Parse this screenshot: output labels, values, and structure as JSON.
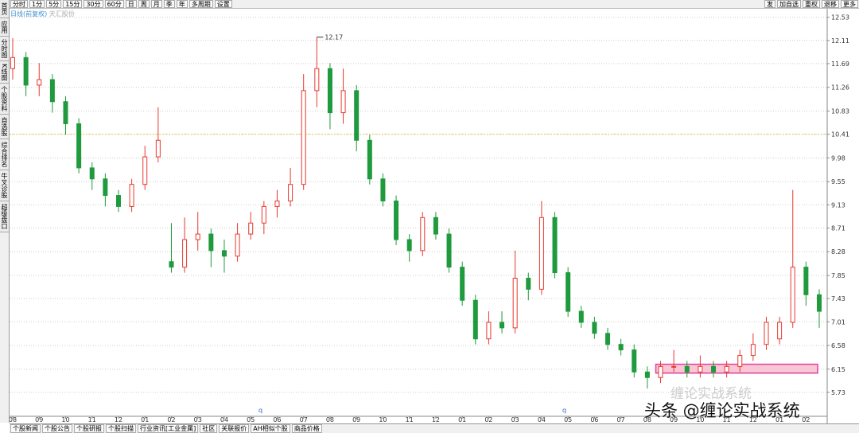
{
  "toolbar": {
    "left": [
      "分时",
      "1分",
      "5分",
      "15分",
      "30分",
      "60分",
      "日",
      "周",
      "月",
      "季",
      "年",
      "多周期",
      "设置"
    ],
    "right": [
      "发",
      "加自选",
      "重权",
      "退移",
      "更多"
    ]
  },
  "side_tabs": [
    "首页",
    "应用",
    "分时图",
    "K线图",
    "个股资料",
    "自选股",
    "综合排名",
    "牛叉诊股",
    "超级盘口"
  ],
  "legend": {
    "period": "日线(前复权)",
    "name": "天汇股份"
  },
  "bottom_tabs": [
    "个股新闻",
    "个股公告",
    "个股研报",
    "个股扫描",
    "行业资讯[工业金属]",
    "社区",
    "关联报价",
    "AH相似个股",
    "商品价格"
  ],
  "bottom_markers": [
    "q",
    "q"
  ],
  "watermark": {
    "main": "头条 @缠论实战系统",
    "faint": "缠论实战系统"
  },
  "chart_data": {
    "type": "candlestick",
    "high_label": "12.17",
    "up_color": "#e8382f",
    "down_color": "#1f9a3c",
    "ylim": [
      5.34,
      12.67
    ],
    "yticks": [
      12.53,
      12.11,
      11.69,
      11.26,
      10.83,
      10.41,
      9.98,
      9.55,
      9.13,
      8.71,
      8.28,
      7.85,
      7.43,
      7.01,
      6.58,
      6.15,
      5.73
    ],
    "reference_line": 10.41,
    "zone": [
      6.08,
      6.24
    ],
    "categories": [
      "08",
      null,
      "09",
      null,
      "10",
      null,
      "11",
      null,
      "12",
      null,
      "01",
      null,
      "02",
      null,
      "03",
      null,
      "04",
      null,
      "05",
      null,
      "06",
      null,
      "07",
      null,
      "08",
      null,
      "09",
      null,
      "10",
      null,
      "11",
      null,
      "12",
      null,
      "01",
      null,
      "02",
      null,
      "03",
      null,
      "04",
      null,
      "05",
      null,
      "06",
      null,
      "07",
      null,
      "08",
      null,
      "09",
      null,
      "10",
      null,
      "11",
      null,
      "12",
      null,
      "01",
      null,
      "02",
      null
    ],
    "open": [
      11.6,
      11.8,
      11.3,
      11.4,
      11.0,
      10.6,
      9.8,
      9.6,
      9.3,
      9.1,
      9.5,
      10.0,
      8.1,
      8.0,
      8.5,
      8.6,
      8.3,
      8.2,
      8.6,
      8.8,
      9.1,
      9.2,
      9.5,
      11.2,
      11.6,
      10.8,
      11.2,
      10.3,
      9.6,
      9.2,
      8.5,
      8.3,
      8.9,
      8.6,
      8.0,
      7.4,
      6.7,
      7.0,
      6.9,
      7.8,
      7.6,
      8.9,
      7.9,
      7.2,
      7.0,
      6.8,
      6.6,
      6.5,
      6.1,
      6.0,
      6.2,
      6.2,
      6.1,
      6.2,
      6.1,
      6.2,
      6.4,
      6.6,
      6.7,
      7.0,
      8.0,
      7.5
    ],
    "high": [
      12.15,
      11.9,
      11.7,
      11.5,
      11.1,
      10.7,
      9.9,
      9.7,
      9.4,
      9.6,
      10.2,
      10.9,
      8.8,
      8.9,
      9.0,
      8.7,
      8.5,
      8.8,
      9.0,
      9.2,
      9.4,
      9.8,
      11.5,
      12.17,
      11.7,
      11.6,
      11.3,
      10.4,
      9.7,
      9.3,
      8.6,
      9.0,
      9.0,
      8.7,
      8.1,
      7.5,
      7.2,
      7.2,
      8.3,
      7.9,
      9.2,
      9.0,
      8.0,
      7.3,
      7.1,
      6.9,
      6.7,
      6.6,
      6.2,
      6.3,
      6.5,
      6.3,
      6.4,
      6.3,
      6.3,
      6.5,
      6.8,
      7.1,
      7.1,
      9.4,
      8.1,
      7.6
    ],
    "low": [
      11.4,
      11.1,
      11.1,
      10.8,
      10.4,
      9.7,
      9.4,
      9.1,
      9.0,
      9.0,
      9.4,
      9.9,
      7.9,
      7.9,
      8.3,
      8.0,
      7.9,
      8.1,
      8.5,
      8.6,
      8.9,
      9.1,
      9.4,
      10.9,
      10.5,
      10.6,
      10.1,
      9.5,
      9.1,
      8.4,
      8.1,
      8.2,
      8.5,
      7.9,
      7.3,
      6.6,
      6.6,
      6.8,
      6.8,
      7.4,
      7.5,
      7.8,
      7.1,
      6.9,
      6.7,
      6.5,
      6.4,
      6.0,
      5.8,
      5.9,
      6.1,
      6.0,
      6.0,
      6.0,
      6.0,
      6.1,
      6.3,
      6.5,
      6.6,
      6.9,
      7.3,
      6.9
    ],
    "close": [
      11.8,
      11.3,
      11.4,
      11.0,
      10.6,
      9.8,
      9.6,
      9.3,
      9.1,
      9.5,
      10.0,
      10.3,
      8.0,
      8.5,
      8.6,
      8.3,
      8.2,
      8.6,
      8.8,
      9.1,
      9.2,
      9.5,
      11.2,
      11.6,
      10.8,
      11.2,
      10.3,
      9.6,
      9.2,
      8.5,
      8.3,
      8.9,
      8.6,
      8.0,
      7.4,
      6.7,
      7.0,
      6.9,
      7.8,
      7.6,
      8.9,
      7.9,
      7.2,
      7.0,
      6.8,
      6.6,
      6.5,
      6.1,
      6.0,
      6.2,
      6.2,
      6.1,
      6.2,
      6.1,
      6.2,
      6.4,
      6.6,
      7.0,
      7.0,
      8.0,
      7.5,
      7.2
    ]
  }
}
